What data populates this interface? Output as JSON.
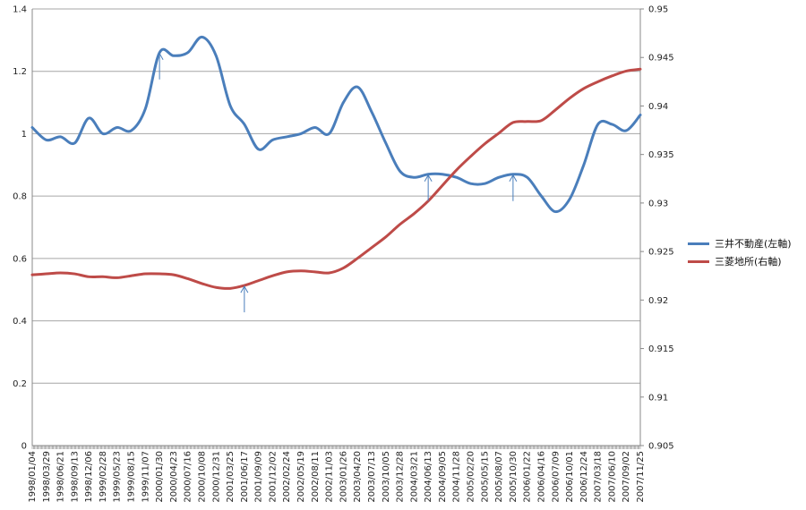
{
  "chart_data": {
    "type": "line",
    "x": [
      "1998/01/04",
      "1998/03/29",
      "1998/06/21",
      "1998/09/13",
      "1998/12/06",
      "1999/02/28",
      "1999/05/23",
      "1999/08/15",
      "1999/11/07",
      "2000/01/30",
      "2000/04/23",
      "2000/07/16",
      "2000/10/08",
      "2000/12/31",
      "2001/03/25",
      "2001/06/17",
      "2001/09/09",
      "2001/12/02",
      "2002/02/24",
      "2002/05/19",
      "2002/08/11",
      "2002/11/03",
      "2003/01/26",
      "2003/04/20",
      "2003/07/13",
      "2003/10/05",
      "2003/12/28",
      "2004/03/21",
      "2004/06/13",
      "2004/09/05",
      "2004/11/28",
      "2005/02/20",
      "2005/05/15",
      "2005/08/07",
      "2005/10/30",
      "2006/01/22",
      "2006/04/16",
      "2006/07/09",
      "2006/10/01",
      "2006/12/24",
      "2007/03/18",
      "2007/06/10",
      "2007/09/02",
      "2007/11/25"
    ],
    "series": [
      {
        "name": "三井不動産(左軸)",
        "axis": "left",
        "color": "#4a7ebb",
        "values": [
          1.02,
          0.98,
          0.99,
          0.97,
          1.05,
          1.0,
          1.02,
          1.01,
          1.08,
          1.26,
          1.25,
          1.26,
          1.31,
          1.25,
          1.09,
          1.03,
          0.95,
          0.98,
          0.99,
          1.0,
          1.02,
          1.0,
          1.1,
          1.15,
          1.07,
          0.97,
          0.88,
          0.86,
          0.87,
          0.87,
          0.86,
          0.84,
          0.84,
          0.86,
          0.87,
          0.86,
          0.8,
          0.75,
          0.79,
          0.9,
          1.03,
          1.03,
          1.01,
          1.06
        ]
      },
      {
        "name": "三菱地所(右軸)",
        "axis": "right",
        "color": "#be4b48",
        "values": [
          0.9226,
          0.9227,
          0.9228,
          0.9227,
          0.9224,
          0.9224,
          0.9223,
          0.9225,
          0.9227,
          0.9227,
          0.9226,
          0.9222,
          0.9217,
          0.9213,
          0.9212,
          0.9215,
          0.922,
          0.9225,
          0.9229,
          0.923,
          0.9229,
          0.9228,
          0.9233,
          0.9243,
          0.9254,
          0.9265,
          0.9278,
          0.9289,
          0.9302,
          0.9318,
          0.9334,
          0.9348,
          0.9361,
          0.9372,
          0.9383,
          0.9384,
          0.9385,
          0.9396,
          0.9408,
          0.9418,
          0.9425,
          0.9431,
          0.9436,
          0.9438
        ]
      }
    ],
    "y_left": {
      "lim": [
        0,
        1.4
      ],
      "ticks": [
        "0",
        "0.2",
        "0.4",
        "0.6",
        "0.8",
        "1",
        "1.2",
        "1.4"
      ]
    },
    "y_right": {
      "lim": [
        0.905,
        0.95
      ],
      "ticks": [
        "0.905",
        "0.91",
        "0.915",
        "0.92",
        "0.925",
        "0.93",
        "0.935",
        "0.94",
        "0.945",
        "0.95"
      ]
    },
    "grid": true,
    "legend_placement": "right",
    "annotations": [
      {
        "type": "arrow",
        "series": "三井不動産(左軸)",
        "x": "2000/01/30"
      },
      {
        "type": "arrow",
        "series": "三菱地所(右軸)",
        "x": "2001/06/17"
      },
      {
        "type": "arrow",
        "series": "三井不動産(左軸)",
        "x": "2004/06/13"
      },
      {
        "type": "arrow",
        "series": "三井不動産(左軸)",
        "x": "2005/10/30"
      }
    ]
  },
  "legend": {
    "items": [
      {
        "label": "三井不動産(左軸)",
        "color": "#4a7ebb"
      },
      {
        "label": "三菱地所(右軸)",
        "color": "#be4b48"
      }
    ]
  }
}
